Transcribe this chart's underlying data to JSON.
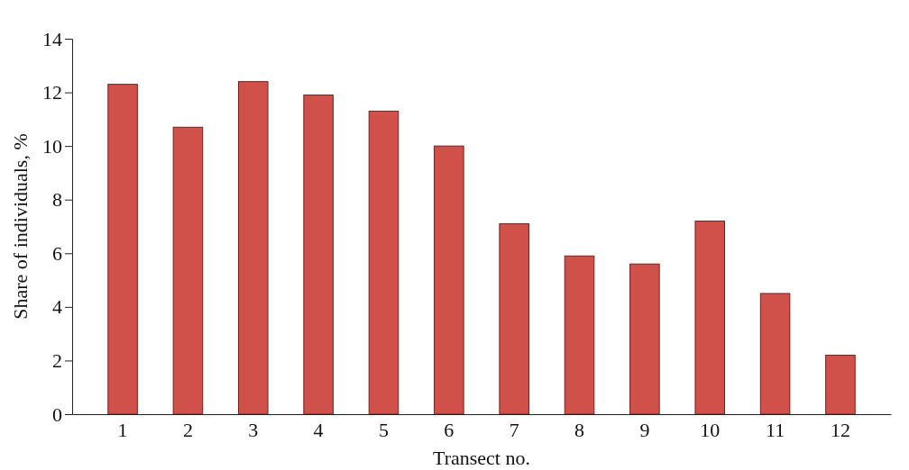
{
  "chart_data": {
    "type": "bar",
    "xlabel": "Transect no.",
    "ylabel": "Share of individuals, %",
    "categories": [
      "1",
      "2",
      "3",
      "4",
      "5",
      "6",
      "7",
      "8",
      "9",
      "10",
      "11",
      "12"
    ],
    "values": [
      12.3,
      10.7,
      12.4,
      11.9,
      11.3,
      10.0,
      7.1,
      5.9,
      5.6,
      7.2,
      4.5,
      2.2
    ],
    "color": "#d0504a",
    "ylim": [
      0,
      14
    ],
    "yticks": [
      0,
      2,
      4,
      6,
      8,
      10,
      12,
      14
    ],
    "grid": false
  }
}
